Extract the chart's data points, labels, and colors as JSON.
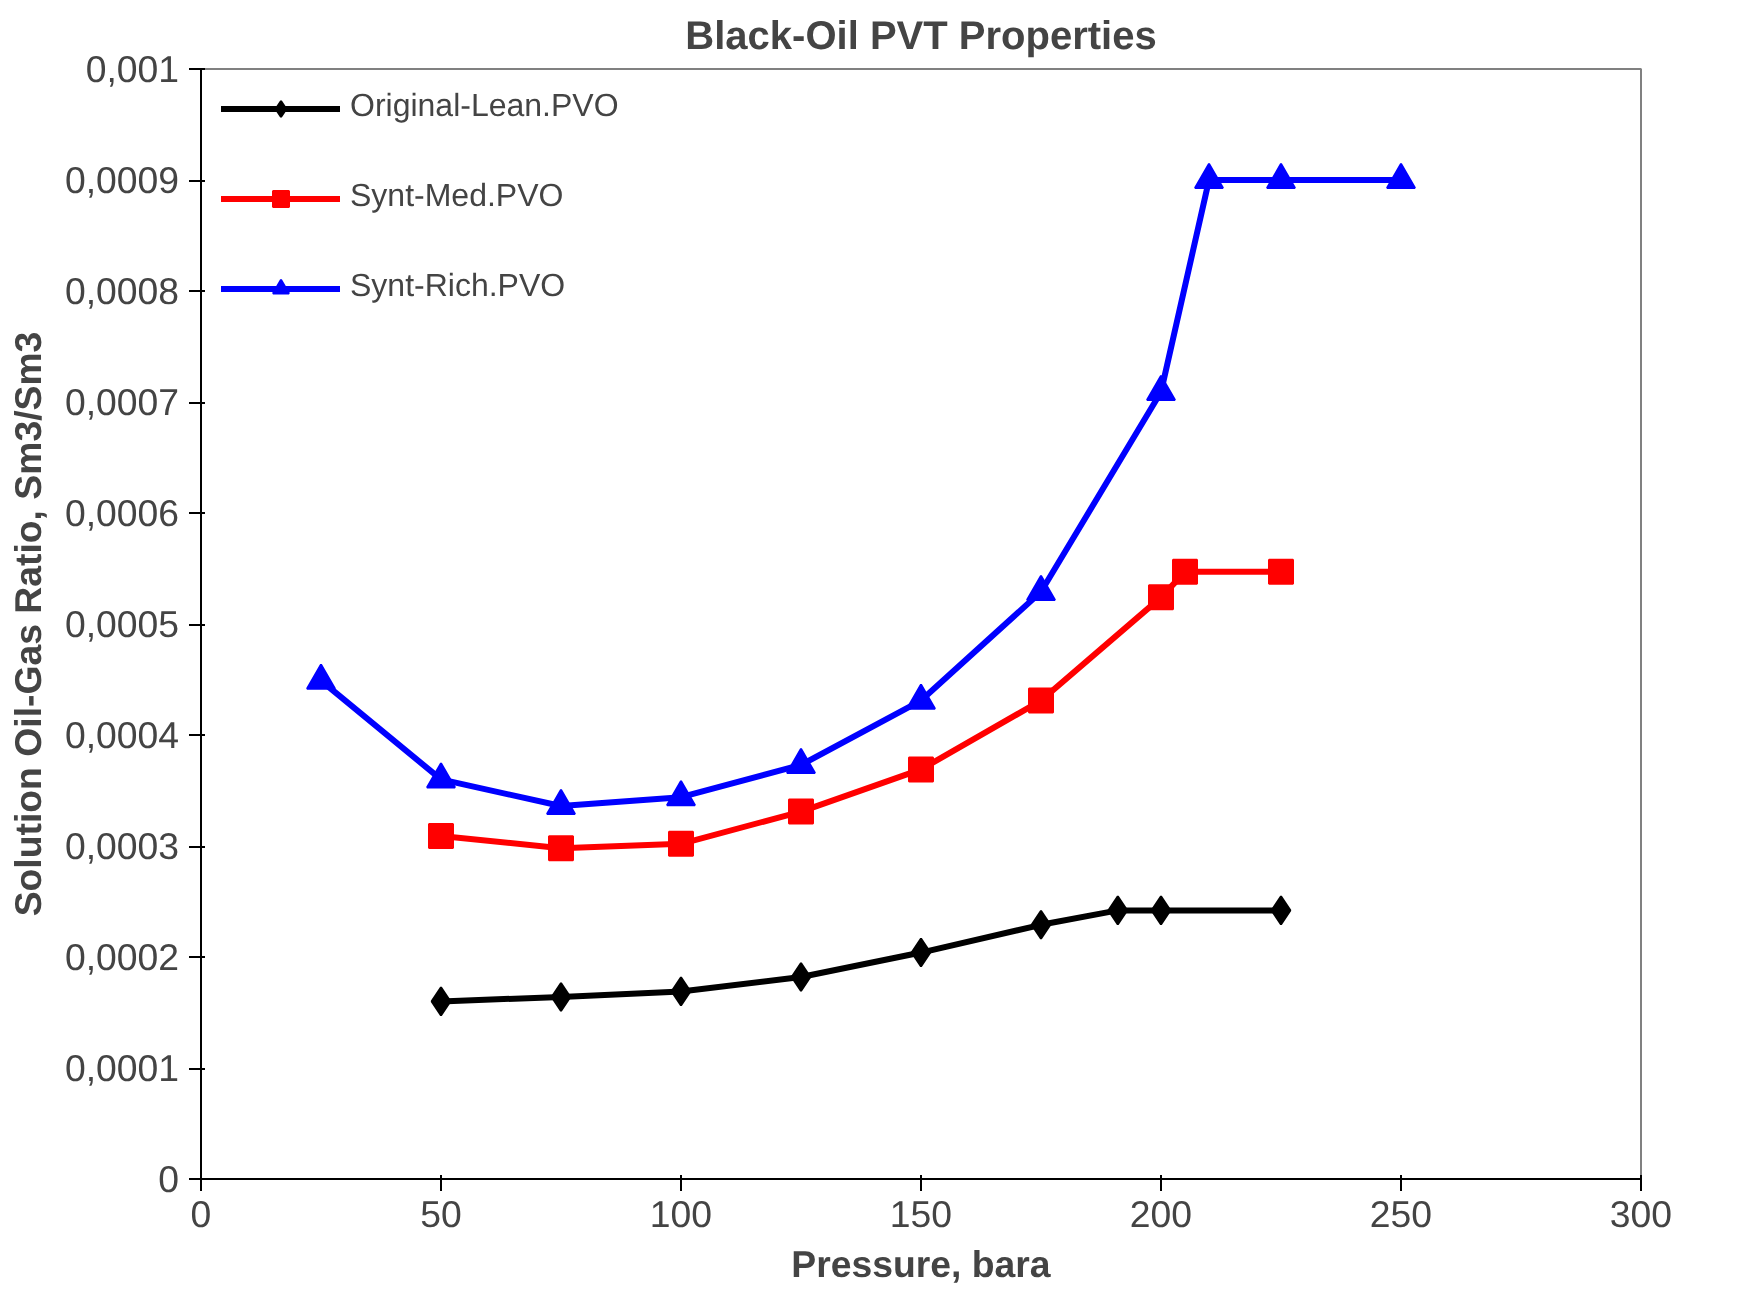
{
  "chart_data": {
    "type": "line",
    "title": "Black-Oil PVT Properties",
    "xlabel": "Pressure, bara",
    "ylabel": "Solution Oil-Gas Ratio, Sm3/Sm3",
    "xlim": [
      0,
      300
    ],
    "xticks": [
      0,
      50,
      100,
      150,
      200,
      250,
      300
    ],
    "ylim": [
      0,
      0.001
    ],
    "yticks": [
      {
        "value": 0,
        "label": "0"
      },
      {
        "value": 0.0001,
        "label": "0,0001"
      },
      {
        "value": 0.0002,
        "label": "0,0002"
      },
      {
        "value": 0.0003,
        "label": "0,0003"
      },
      {
        "value": 0.0004,
        "label": "0,0004"
      },
      {
        "value": 0.0005,
        "label": "0,0005"
      },
      {
        "value": 0.0006,
        "label": "0,0006"
      },
      {
        "value": 0.0007,
        "label": "0,0007"
      },
      {
        "value": 0.0008,
        "label": "0,0008"
      },
      {
        "value": 0.0009,
        "label": "0,0009"
      },
      {
        "value": 0.001,
        "label": "0,001"
      }
    ],
    "grid": false,
    "legend": "top left",
    "line_style": "solid",
    "series": [
      {
        "name": "Original-Lean.PVO",
        "color": "#000000",
        "marker": "diamond",
        "x": [
          50,
          75,
          100,
          125,
          150,
          175,
          191,
          200,
          225
        ],
        "values": [
          0.00016,
          0.000164,
          0.000169,
          0.000182,
          0.000204,
          0.000229,
          0.000242,
          0.000242,
          0.000242
        ]
      },
      {
        "name": "Synt-Med.PVO",
        "color": "#ff0000",
        "marker": "square",
        "x": [
          50,
          75,
          100,
          125,
          150,
          175,
          200,
          205,
          225
        ],
        "values": [
          0.000309,
          0.000298,
          0.000302,
          0.000331,
          0.000369,
          0.000431,
          0.000524,
          0.000547,
          0.000547
        ]
      },
      {
        "name": "Synt-Rich.PVO",
        "color": "#0000ff",
        "marker": "triangle",
        "x": [
          25,
          50,
          75,
          100,
          125,
          150,
          175,
          200,
          210,
          225,
          250
        ],
        "values": [
          0.000449,
          0.00036,
          0.000336,
          0.000344,
          0.000373,
          0.000431,
          0.000529,
          0.000709,
          0.0009,
          0.0009,
          0.0009
        ]
      }
    ]
  }
}
